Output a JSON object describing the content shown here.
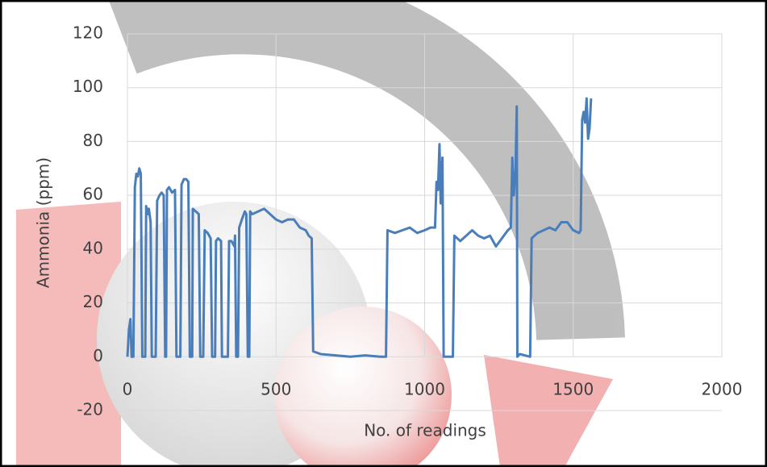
{
  "chart_data": {
    "type": "line",
    "xlabel": "No. of readings",
    "ylabel": "Ammonia (ppm)",
    "x": [
      0,
      5,
      10,
      14,
      20,
      25,
      30,
      35,
      40,
      45,
      50,
      60,
      63,
      68,
      72,
      78,
      82,
      95,
      100,
      108,
      115,
      122,
      127,
      130,
      133,
      140,
      150,
      160,
      165,
      178,
      182,
      190,
      198,
      205,
      210,
      218,
      220,
      230,
      240,
      245,
      255,
      260,
      270,
      280,
      285,
      295,
      298,
      305,
      315,
      318,
      338,
      342,
      350,
      360,
      362,
      366,
      372,
      376,
      385,
      395,
      400,
      405,
      410,
      413,
      420,
      440,
      460,
      480,
      500,
      520,
      540,
      560,
      580,
      600,
      610,
      620,
      625,
      650,
      700,
      750,
      800,
      850,
      870,
      875,
      900,
      925,
      950,
      975,
      1000,
      1020,
      1035,
      1040,
      1045,
      1050,
      1054,
      1060,
      1064,
      1070,
      1095,
      1100,
      1120,
      1140,
      1160,
      1180,
      1200,
      1220,
      1240,
      1260,
      1280,
      1290,
      1295,
      1300,
      1306,
      1310,
      1312,
      1320,
      1355,
      1360,
      1380,
      1400,
      1420,
      1440,
      1460,
      1480,
      1500,
      1520,
      1525,
      1530,
      1535,
      1540,
      1545,
      1550,
      1555,
      1560
    ],
    "values": [
      0,
      10,
      14,
      0,
      0,
      63,
      68,
      67,
      70,
      68,
      0,
      0,
      56,
      53,
      55,
      50,
      0,
      0,
      58,
      60,
      61,
      60,
      0,
      0,
      62,
      63,
      61,
      62,
      0,
      0,
      64,
      66,
      66,
      65,
      0,
      0,
      55,
      54,
      53,
      0,
      0,
      47,
      46,
      44,
      0,
      0,
      43,
      44,
      43,
      0,
      0,
      43,
      43,
      41,
      45,
      0,
      0,
      48,
      51,
      54,
      53,
      0,
      0,
      54,
      53,
      54,
      55,
      53,
      51,
      50,
      51,
      51,
      48,
      47,
      45,
      44,
      2,
      1,
      0.5,
      0,
      0.5,
      0,
      0,
      47,
      46,
      47,
      48,
      46,
      47,
      48,
      48,
      65,
      62,
      79,
      57,
      74,
      0,
      0,
      0,
      45,
      43,
      45,
      47,
      45,
      44,
      45,
      41,
      44,
      47,
      48,
      74,
      60,
      70,
      93,
      0,
      1,
      0,
      44,
      46,
      47,
      48,
      47,
      50,
      50,
      47,
      46,
      47,
      88,
      91,
      87,
      96,
      81,
      85,
      96
    ],
    "color": "#4a7ebb",
    "xlim": [
      0,
      2000
    ],
    "xticks": [
      0,
      500,
      1000,
      1500,
      2000
    ],
    "ylim": [
      -20,
      120
    ],
    "yticks": [
      -20,
      0,
      20,
      40,
      60,
      80,
      100,
      120
    ],
    "grid": true
  }
}
